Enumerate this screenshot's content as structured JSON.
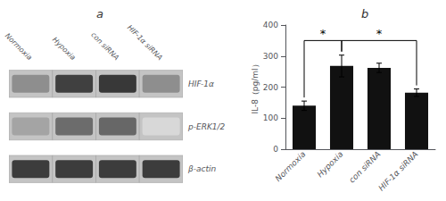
{
  "chart_data": [
    {
      "type": "heatmap",
      "title": "a",
      "x": [
        "Normoxia",
        "Hypoxia",
        "con siRNA",
        "HIF-1α siRNA"
      ],
      "y": [
        "HIF-1α",
        "p-ERK1/2",
        "β-actin"
      ],
      "cells": [
        [
          0.52,
          0.88,
          0.92,
          0.52
        ],
        [
          0.42,
          0.68,
          0.7,
          0.18
        ],
        [
          0.9,
          0.9,
          0.9,
          0.9
        ]
      ]
    },
    {
      "type": "bar",
      "title": "b",
      "categories": [
        "Normoxia",
        "Hypoxia",
        "con siRNA",
        "HIF-1α siRNA"
      ],
      "values": [
        140,
        268,
        262,
        182
      ],
      "errors": [
        15,
        35,
        15,
        12
      ],
      "color": "#111111",
      "ylabel": "IL-8（pg/ml）",
      "ylim": [
        0,
        400
      ],
      "yticks": [
        0,
        100,
        200,
        300,
        400
      ],
      "grid": false,
      "annotations": [
        {
          "text": "*",
          "from": "Normoxia",
          "to": "Hypoxia",
          "y": 350
        },
        {
          "text": "*",
          "from": "Hypoxia",
          "to": "HIF-1α siRNA",
          "y": 350
        }
      ]
    }
  ]
}
